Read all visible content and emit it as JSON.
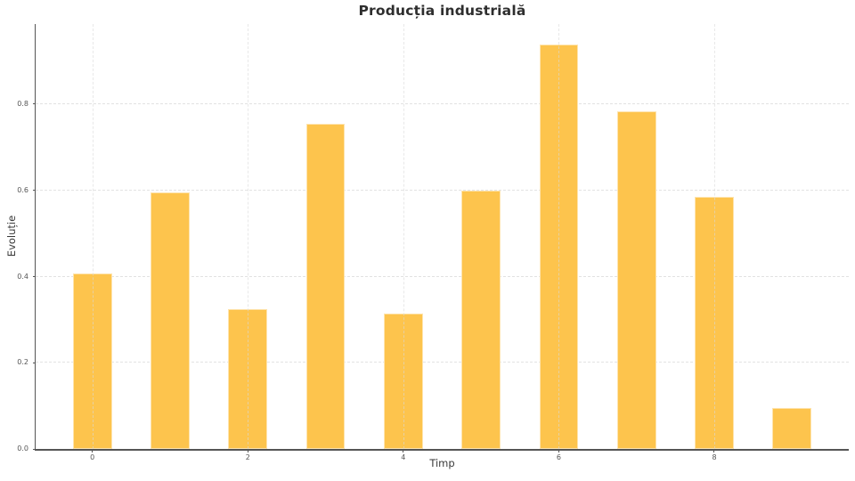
{
  "chart_data": {
    "type": "bar",
    "title": "Producția industrială",
    "xlabel": "Timp",
    "ylabel": "Evoluție",
    "x": [
      0,
      1,
      2,
      3,
      4,
      5,
      6,
      7,
      8,
      9
    ],
    "values": [
      0.407,
      0.596,
      0.324,
      0.754,
      0.315,
      0.6,
      0.939,
      0.783,
      0.585,
      0.095
    ],
    "bar_width": 0.5,
    "xlim": [
      -0.73,
      9.73
    ],
    "ylim": [
      0,
      0.986
    ],
    "x_ticks": [
      0,
      2,
      4,
      6,
      8
    ],
    "x_tick_labels": [
      "0",
      "2",
      "4",
      "6",
      "8"
    ],
    "y_ticks": [
      0.0,
      0.2,
      0.4,
      0.6,
      0.8
    ],
    "y_tick_labels": [
      "0.0",
      "0.2",
      "0.4",
      "0.6",
      "0.8"
    ],
    "grid": true,
    "legend": "none",
    "colors": {
      "bar_fill": "#FDC44D",
      "bar_edge": "rgba(255,255,255,0.55)",
      "grid": "#e2e2e2",
      "axis": "#555555",
      "tick_label": "#555555",
      "title": "#2e2e2e",
      "axis_label": "#3a3a3a",
      "background": "#ffffff"
    }
  }
}
